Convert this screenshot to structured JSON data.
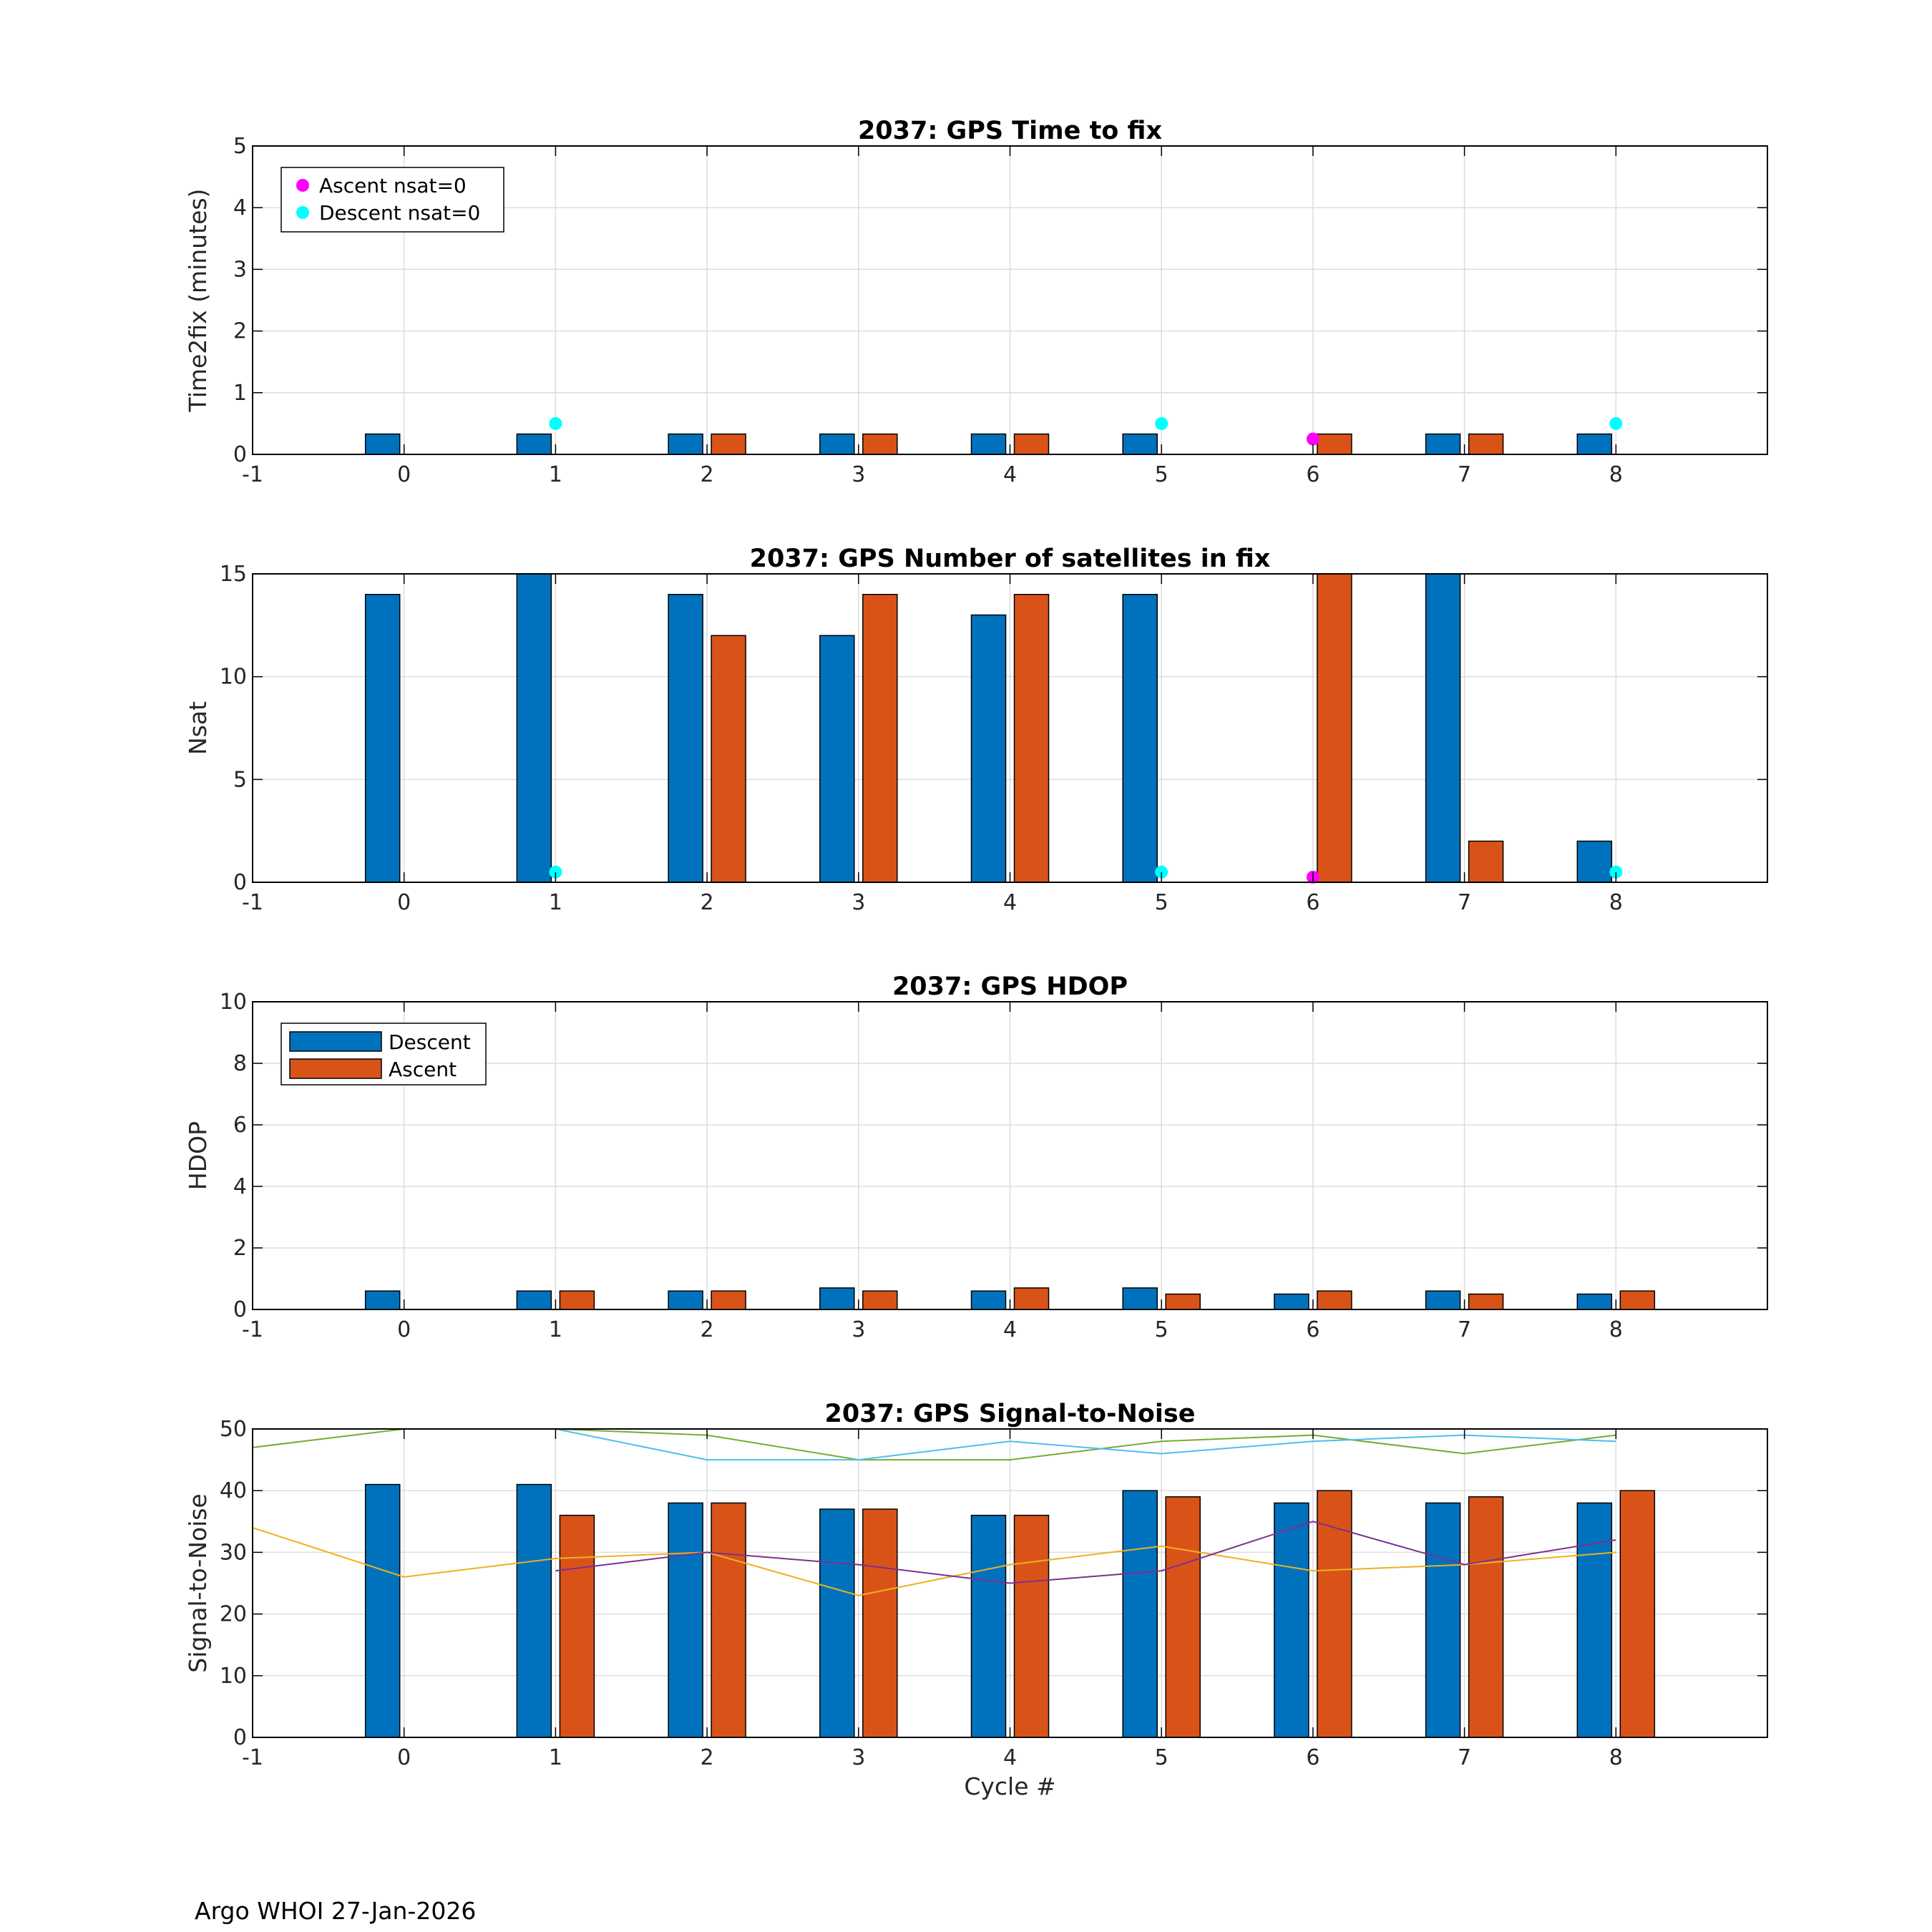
{
  "footer": "Argo WHOI 27-Jan-2026",
  "colors": {
    "descent": "#0072BD",
    "ascent": "#D95319",
    "ascent_nsat0": "#FF00FF",
    "descent_nsat0": "#00FFFF",
    "grid": "#dddddd"
  },
  "chart_data": [
    {
      "type": "bar",
      "title": "2037: GPS Time to fix",
      "xlabel": "",
      "ylabel": "Time2fix (minutes)",
      "xlim": [
        -1,
        9
      ],
      "ylim": [
        0,
        5
      ],
      "xticks": [
        -1,
        0,
        1,
        2,
        3,
        4,
        5,
        6,
        7,
        8
      ],
      "yticks": [
        0,
        1,
        2,
        3,
        4,
        5
      ],
      "categories": [
        0,
        1,
        2,
        3,
        4,
        5,
        6,
        7,
        8
      ],
      "series": [
        {
          "name": "Descent",
          "values": [
            0.33,
            0.33,
            0.33,
            0.33,
            0.33,
            0.33,
            null,
            0.33,
            0.33
          ]
        },
        {
          "name": "Ascent",
          "values": [
            null,
            null,
            0.33,
            0.33,
            0.33,
            null,
            0.33,
            0.33,
            null
          ]
        }
      ],
      "markers": [
        {
          "name": "Ascent nsat=0",
          "x": [
            6
          ],
          "y": [
            0.25
          ]
        },
        {
          "name": "Descent nsat=0",
          "x": [
            1,
            5,
            8
          ],
          "y": [
            0.5,
            0.5,
            0.5
          ]
        }
      ],
      "legend": {
        "placement": "top-left",
        "kind": "markers",
        "entries": [
          "Ascent nsat=0",
          "Descent nsat=0"
        ]
      }
    },
    {
      "type": "bar",
      "title": "2037: GPS Number of satellites in fix",
      "xlabel": "",
      "ylabel": "Nsat",
      "xlim": [
        -1,
        9
      ],
      "ylim": [
        0,
        15
      ],
      "xticks": [
        -1,
        0,
        1,
        2,
        3,
        4,
        5,
        6,
        7,
        8
      ],
      "yticks": [
        0,
        5,
        10,
        15
      ],
      "categories": [
        0,
        1,
        2,
        3,
        4,
        5,
        6,
        7,
        8
      ],
      "series": [
        {
          "name": "Descent",
          "values": [
            14,
            15,
            14,
            12,
            13,
            14,
            null,
            15,
            2
          ]
        },
        {
          "name": "Ascent",
          "values": [
            null,
            null,
            12,
            14,
            14,
            null,
            15,
            2,
            null
          ]
        }
      ],
      "markers": [
        {
          "name": "Ascent nsat=0",
          "x": [
            6
          ],
          "y": [
            0.25
          ]
        },
        {
          "name": "Descent nsat=0",
          "x": [
            1,
            5,
            8
          ],
          "y": [
            0.5,
            0.5,
            0.5
          ]
        }
      ]
    },
    {
      "type": "bar",
      "title": "2037: GPS HDOP",
      "xlabel": "",
      "ylabel": "HDOP",
      "xlim": [
        -1,
        9
      ],
      "ylim": [
        0,
        10
      ],
      "xticks": [
        -1,
        0,
        1,
        2,
        3,
        4,
        5,
        6,
        7,
        8
      ],
      "yticks": [
        0,
        2,
        4,
        6,
        8,
        10
      ],
      "categories": [
        0,
        1,
        2,
        3,
        4,
        5,
        6,
        7,
        8
      ],
      "series": [
        {
          "name": "Descent",
          "values": [
            0.6,
            0.6,
            0.6,
            0.7,
            0.6,
            0.7,
            0.5,
            0.6,
            0.5
          ]
        },
        {
          "name": "Ascent",
          "values": [
            null,
            0.6,
            0.6,
            0.6,
            0.7,
            0.5,
            0.6,
            0.5,
            0.6
          ]
        }
      ],
      "legend": {
        "placement": "top-left",
        "kind": "bars",
        "entries": [
          "Descent",
          "Ascent"
        ]
      }
    },
    {
      "type": "bar",
      "title": "2037: GPS Signal-to-Noise",
      "xlabel": "Cycle #",
      "ylabel": "Signal-to-Noise",
      "xlim": [
        -1,
        9
      ],
      "ylim": [
        0,
        50
      ],
      "xticks": [
        -1,
        0,
        1,
        2,
        3,
        4,
        5,
        6,
        7,
        8
      ],
      "yticks": [
        0,
        10,
        20,
        30,
        40,
        50
      ],
      "categories": [
        0,
        1,
        2,
        3,
        4,
        5,
        6,
        7,
        8
      ],
      "series": [
        {
          "name": "Descent",
          "values": [
            41,
            41,
            38,
            37,
            36,
            40,
            38,
            38,
            38
          ]
        },
        {
          "name": "Ascent",
          "values": [
            null,
            36,
            38,
            37,
            36,
            39,
            40,
            39,
            40
          ]
        }
      ],
      "lines": [
        {
          "color": "#77AC30",
          "x": [
            -1,
            0,
            1,
            2,
            3,
            4,
            5,
            6,
            7,
            8
          ],
          "y": [
            47,
            50.5,
            50,
            49,
            45,
            45,
            48,
            49,
            46,
            49
          ]
        },
        {
          "color": "#4DBEEE",
          "x": [
            1,
            2,
            3,
            4,
            5,
            6,
            7,
            8
          ],
          "y": [
            50,
            45,
            45,
            48,
            46,
            48,
            49,
            48
          ]
        },
        {
          "color": "#EDB120",
          "x": [
            -1,
            0,
            1,
            2,
            3,
            4,
            5,
            6,
            7,
            8
          ],
          "y": [
            34,
            26,
            29,
            30,
            23,
            28,
            31,
            27,
            28,
            30
          ]
        },
        {
          "color": "#7E2F8E",
          "x": [
            1,
            2,
            3,
            4,
            5,
            6,
            7,
            8
          ],
          "y": [
            27,
            30,
            28,
            25,
            27,
            35,
            28,
            32
          ]
        }
      ]
    }
  ]
}
